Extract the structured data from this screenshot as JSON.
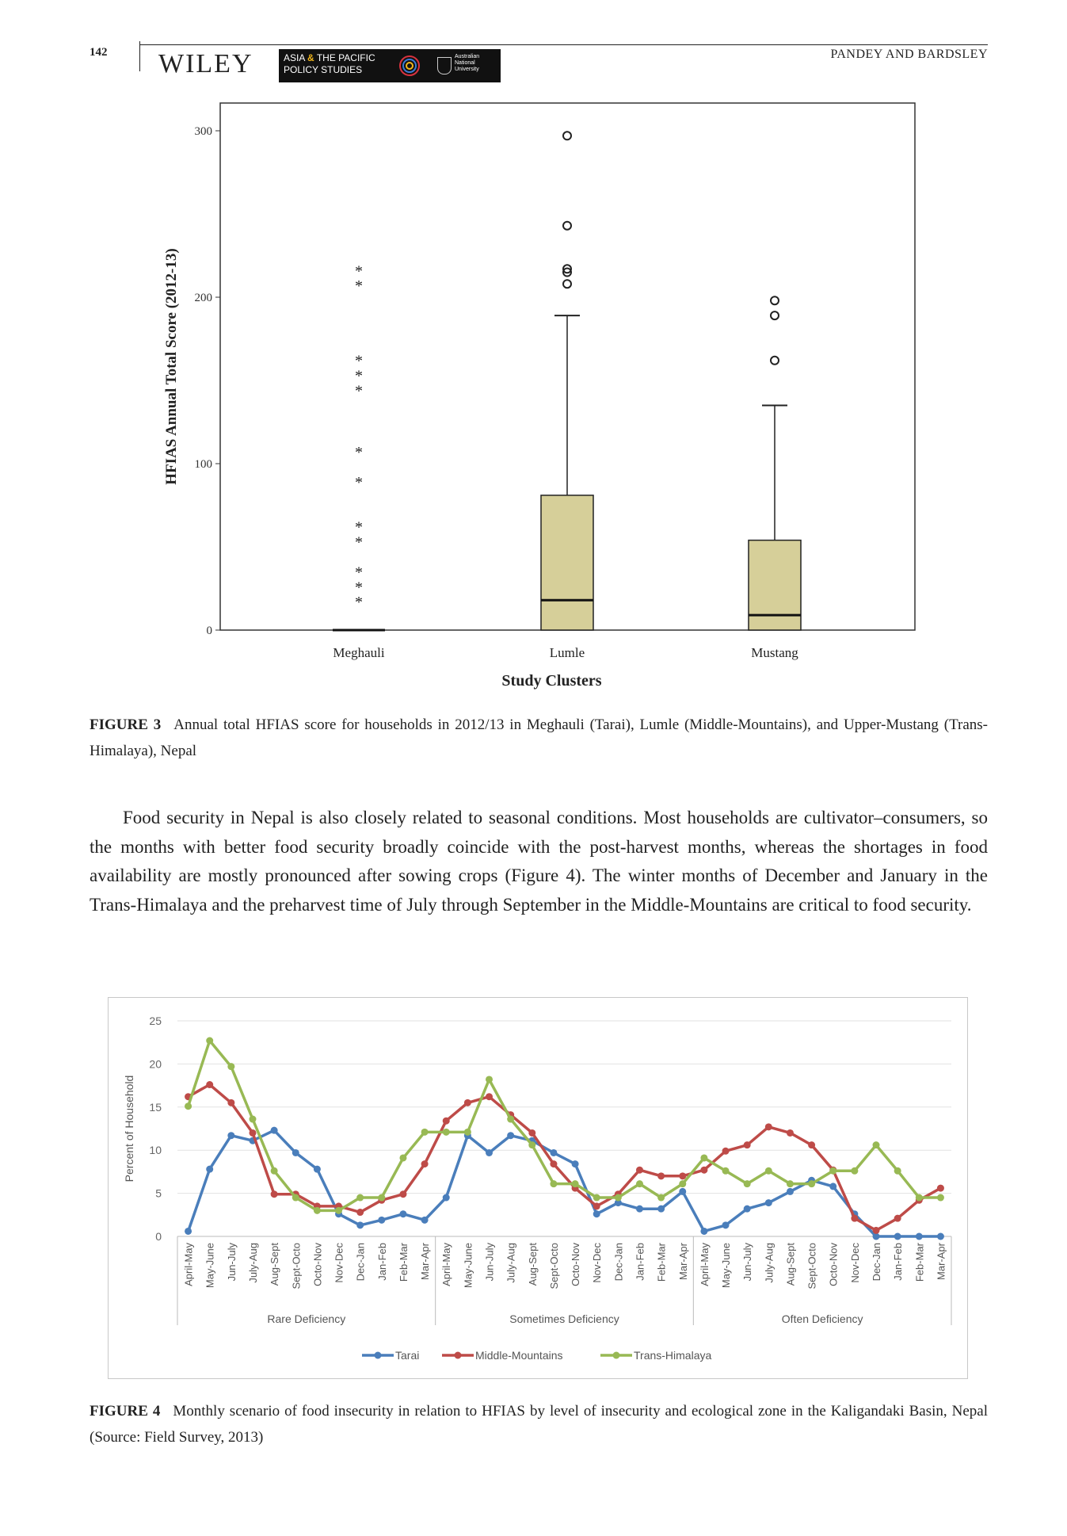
{
  "header": {
    "page_number": "142",
    "publisher": "WILEY",
    "journal_line1_a": "ASIA",
    "journal_line1_amp": "&",
    "journal_line1_b": "THE PACIFIC",
    "journal_line2": "POLICY STUDIES",
    "university": "Australian National University",
    "running_head": "PANDEY AND BARDSLEY"
  },
  "figure3": {
    "label": "FIGURE 3",
    "caption": "Annual total HFIAS score for households in 2012/13 in Meghauli (Tarai), Lumle (Middle-Mountains), and Upper-Mustang (Trans-Himalaya), Nepal"
  },
  "body_paragraph": "Food security in Nepal is also closely related to seasonal conditions. Most households are cultivator–consumers, so the months with better food security broadly coincide with the post-harvest months, whereas the shortages in food availability are mostly pronounced after sowing crops (Figure 4). The winter months of December and January in the Trans-Himalaya and the preharvest time of July through September in the Middle-Mountains are critical to food security.",
  "figure4": {
    "label": "FIGURE 4",
    "caption": "Monthly scenario of food insecurity in relation to HFIAS by level of insecurity and ecological zone in the Kaligandaki Basin, Nepal (Source: Field Survey, 2013)"
  },
  "chart_data": [
    {
      "type": "boxplot",
      "xlabel": "Study Clusters",
      "ylabel": "HFIAS Annual Total Score (2012-13)",
      "ylim": [
        0,
        320
      ],
      "yticks": [
        0,
        100,
        200,
        300
      ],
      "grid": false,
      "box_color": "#d6cf99",
      "groups": [
        {
          "name": "Meghauli",
          "min": 0,
          "q1": 0,
          "median": 0,
          "q3": 0,
          "max": 0,
          "outliers_circle": [],
          "outliers_star": [
            217,
            208,
            163,
            154,
            145,
            108,
            90,
            63,
            54,
            36,
            27,
            18
          ]
        },
        {
          "name": "Lumle",
          "min": 0,
          "q1": 0,
          "median": 18,
          "q3": 81,
          "max": 189,
          "outliers_circle": [
            297,
            243,
            217,
            215,
            208
          ],
          "outliers_star": []
        },
        {
          "name": "Mustang",
          "min": 0,
          "q1": 0,
          "median": 9,
          "q3": 54,
          "max": 135,
          "outliers_circle": [
            198,
            189,
            162
          ],
          "outliers_star": []
        }
      ]
    },
    {
      "type": "line",
      "ylabel": "Percent of Household",
      "ylim": [
        0,
        25
      ],
      "yticks": [
        0,
        5,
        10,
        15,
        20,
        25
      ],
      "grid": true,
      "legend_position": "bottom",
      "categories": [
        "April-May",
        "May-June",
        "Jun-July",
        "July-Aug",
        "Aug-Sept",
        "Sept-Octo",
        "Octo-Nov",
        "Nov-Dec",
        "Dec-Jan",
        "Jan-Feb",
        "Feb-Mar",
        "Mar-Apr",
        "April-May",
        "May-June",
        "Jun-July",
        "July-Aug",
        "Aug-Sept",
        "Sept-Octo",
        "Octo-Nov",
        "Nov-Dec",
        "Dec-Jan",
        "Jan-Feb",
        "Feb-Mar",
        "Mar-Apr",
        "April-May",
        "May-June",
        "Jun-July",
        "July-Aug",
        "Aug-Sept",
        "Sept-Octo",
        "Octo-Nov",
        "Nov-Dec",
        "Dec-Jan",
        "Jan-Feb",
        "Feb-Mar",
        "Mar-Apr"
      ],
      "groups": [
        {
          "label": "Rare Deficiency",
          "count": 12
        },
        {
          "label": "Sometimes Deficiency",
          "count": 12
        },
        {
          "label": "Often Deficiency",
          "count": 12
        }
      ],
      "series": [
        {
          "name": "Tarai",
          "color": "#4a7ebb",
          "values": [
            0.6,
            7.8,
            11.7,
            11.1,
            12.3,
            9.7,
            7.8,
            2.6,
            1.3,
            1.9,
            2.6,
            1.9,
            4.5,
            11.7,
            9.7,
            11.7,
            11.1,
            9.7,
            8.4,
            2.6,
            3.9,
            3.2,
            3.2,
            5.2,
            0.6,
            1.3,
            3.2,
            3.9,
            5.2,
            6.5,
            5.8,
            2.6,
            0,
            0,
            0,
            0
          ]
        },
        {
          "name": "Middle-Mountains",
          "color": "#be4b48",
          "values": [
            16.2,
            17.6,
            15.5,
            12.0,
            4.9,
            4.9,
            3.5,
            3.5,
            2.8,
            4.2,
            4.9,
            8.4,
            13.4,
            15.5,
            16.2,
            14.1,
            12.0,
            8.4,
            5.6,
            3.5,
            4.9,
            7.7,
            7.0,
            7.0,
            7.7,
            9.9,
            10.6,
            12.7,
            12.0,
            10.6,
            7.7,
            2.1,
            0.7,
            2.1,
            4.2,
            5.6
          ]
        },
        {
          "name": "Trans-Himalaya",
          "color": "#98b954",
          "values": [
            15.1,
            22.7,
            19.7,
            13.6,
            7.6,
            4.5,
            3.0,
            3.0,
            4.5,
            4.5,
            9.1,
            12.1,
            12.1,
            12.1,
            18.2,
            13.6,
            10.6,
            6.1,
            6.1,
            4.5,
            4.5,
            6.1,
            4.5,
            6.1,
            9.1,
            7.6,
            6.1,
            7.6,
            6.1,
            6.1,
            7.6,
            7.6,
            10.6,
            7.6,
            4.5,
            4.5
          ]
        }
      ]
    }
  ]
}
